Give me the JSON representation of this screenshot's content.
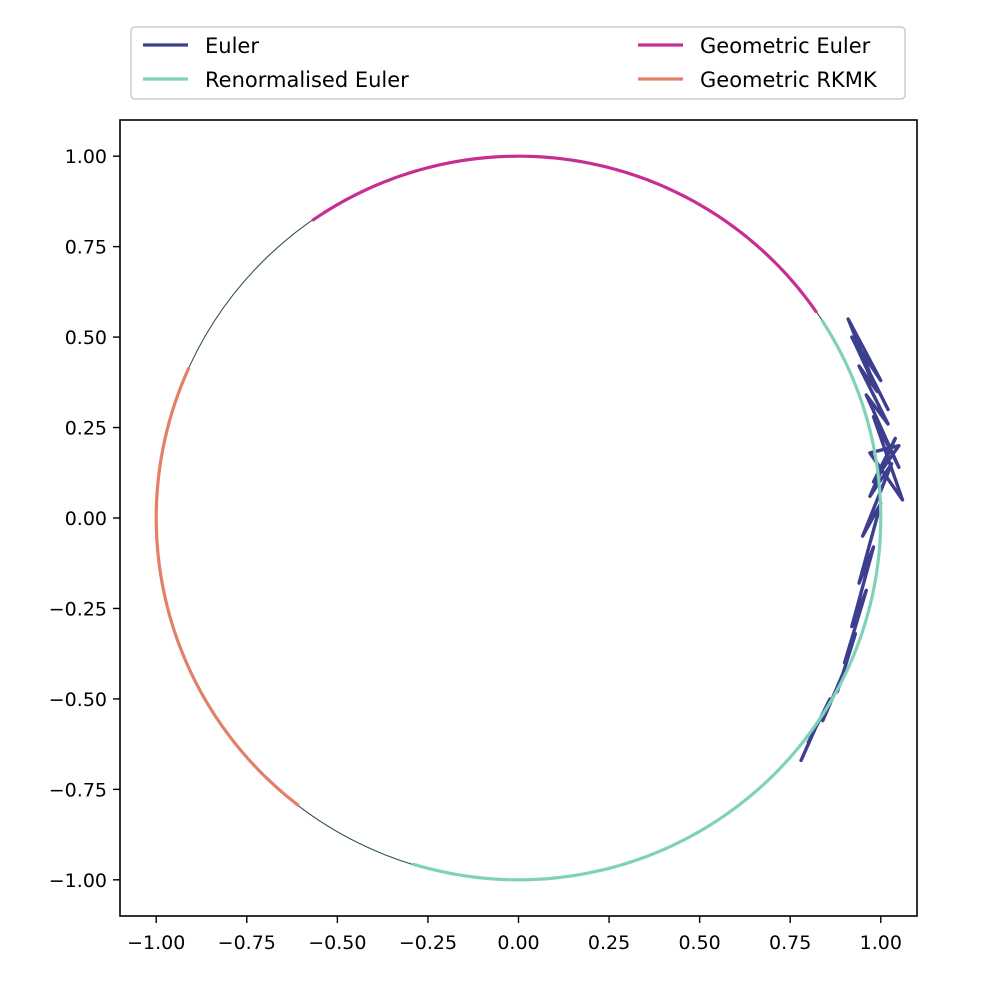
{
  "chart_data": {
    "type": "line",
    "title": "",
    "xlabel": "",
    "ylabel": "",
    "xlim": [
      -1.1,
      1.1
    ],
    "ylim": [
      -1.1,
      1.1
    ],
    "grid": false,
    "aspect": "equal",
    "legend": {
      "placement": "top-center-outside",
      "columns": 2
    },
    "x_ticks": [
      -1.0,
      -0.75,
      -0.5,
      -0.25,
      0.0,
      0.25,
      0.5,
      0.75,
      1.0
    ],
    "x_tick_labels": [
      "−1.00",
      "−0.75",
      "−0.50",
      "−0.25",
      "0.00",
      "0.25",
      "0.50",
      "0.75",
      "1.00"
    ],
    "y_ticks": [
      -1.0,
      -0.75,
      -0.5,
      -0.25,
      0.0,
      0.25,
      0.5,
      0.75,
      1.0
    ],
    "y_tick_labels": [
      "−1.00",
      "−0.75",
      "−0.50",
      "−0.25",
      "0.00",
      "0.25",
      "0.50",
      "0.75",
      "1.00"
    ],
    "reference_circle": {
      "radius": 1.0,
      "center": [
        0,
        0
      ],
      "color": "#2f4f4f"
    },
    "series": [
      {
        "name": "Euler",
        "color": "#3d3f8e",
        "kind": "noisy_arc",
        "note_visible": "jagged zig-zag path hugging right side of circle",
        "x": [
          0.78,
          0.82,
          0.8,
          0.86,
          0.84,
          0.9,
          0.88,
          0.93,
          0.9,
          0.96,
          0.92,
          0.98,
          0.94,
          1.0,
          0.95,
          1.03,
          0.97,
          1.04,
          0.98,
          1.05,
          0.97,
          1.06,
          0.98,
          1.05,
          0.96,
          1.02,
          0.94,
          0.99,
          0.93,
          0.97,
          0.91,
          1.0,
          0.92,
          1.02
        ],
        "y": [
          -0.67,
          -0.58,
          -0.62,
          -0.5,
          -0.56,
          -0.42,
          -0.48,
          -0.32,
          -0.4,
          -0.2,
          -0.3,
          -0.08,
          -0.18,
          0.04,
          -0.05,
          0.15,
          0.06,
          0.22,
          0.1,
          0.2,
          0.18,
          0.05,
          0.28,
          0.14,
          0.34,
          0.26,
          0.42,
          0.35,
          0.48,
          0.4,
          0.55,
          0.38,
          0.5,
          0.3
        ]
      },
      {
        "name": "Renormalised Euler",
        "color": "#7fd1b9",
        "kind": "arc",
        "theta_start_deg": -106.8,
        "theta_end_deg": 33.0
      },
      {
        "name": "Geometric Euler",
        "color": "#c72e94",
        "kind": "arc",
        "theta_start_deg": 34.8,
        "theta_end_deg": 124.5
      },
      {
        "name": "Geometric RKMK",
        "color": "#e3806a",
        "kind": "arc",
        "theta_start_deg": 155.6,
        "theta_end_deg": 232.5
      }
    ]
  }
}
